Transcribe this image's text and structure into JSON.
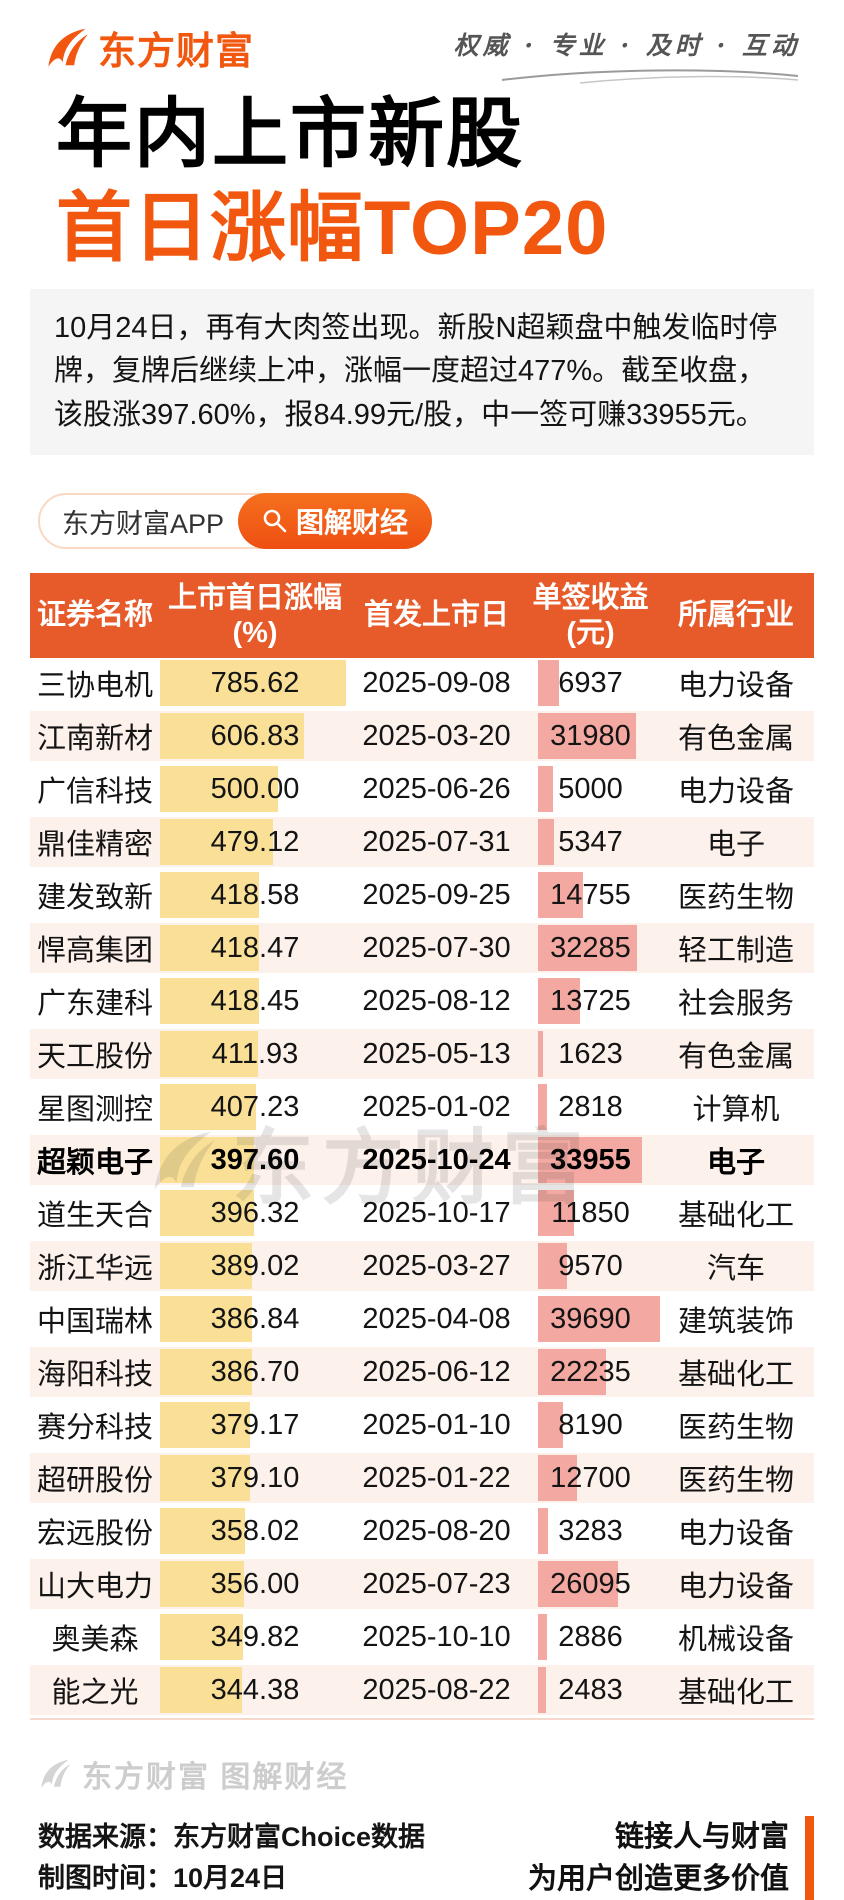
{
  "header": {
    "brand": "东方财富",
    "tagline": "权威 · 专业 · 及时 · 互动"
  },
  "title": {
    "line1": "年内上市新股",
    "line2": "首日涨幅TOP20"
  },
  "summary": "10月24日，再有大肉签出现。新股N超颖盘中触发临时停牌，复牌后继续上冲，涨幅一度超过477%。截至收盘，该股涨397.60%，报84.99元/股，中一签可赚33955元。",
  "pills": {
    "app_label": "东方财富APP",
    "feature_label": "图解财经",
    "icon": "search-icon"
  },
  "table": {
    "columns": [
      {
        "label": "证券名称",
        "sub": ""
      },
      {
        "label": "上市首日涨幅",
        "sub": "(%)"
      },
      {
        "label": "首发上市日",
        "sub": ""
      },
      {
        "label": "单签收益",
        "sub": "(元)"
      },
      {
        "label": "所属行业",
        "sub": ""
      }
    ],
    "highlight_row": 9
  },
  "watermark": {
    "table_text": "东方财富",
    "footer_text": "东方财富 图解财经"
  },
  "footer": {
    "source": "数据来源：东方财富Choice数据",
    "time": "制图时间：10月24日",
    "slogan_line1": "链接人与财富",
    "slogan_line2": "为用户创造更多价值"
  },
  "colors": {
    "accent": "#f2570f",
    "table_header": "#e75b2b",
    "gain_bar": "#f9e096",
    "income_bar": "#f3a8a1",
    "row_alt": "#fdf1ec"
  },
  "chart_data": {
    "type": "table",
    "title": "年内上市新股首日涨幅TOP20",
    "columns": [
      "证券名称",
      "上市首日涨幅(%)",
      "首发上市日",
      "单签收益(元)",
      "所属行业"
    ],
    "bar_columns": {
      "gain_col": 1,
      "income_col": 3
    },
    "rows": [
      [
        "三协电机",
        785.62,
        "2025-09-08",
        6937,
        "电力设备"
      ],
      [
        "江南新材",
        606.83,
        "2025-03-20",
        31980,
        "有色金属"
      ],
      [
        "广信科技",
        500.0,
        "2025-06-26",
        5000,
        "电力设备"
      ],
      [
        "鼎佳精密",
        479.12,
        "2025-07-31",
        5347,
        "电子"
      ],
      [
        "建发致新",
        418.58,
        "2025-09-25",
        14755,
        "医药生物"
      ],
      [
        "悍高集团",
        418.47,
        "2025-07-30",
        32285,
        "轻工制造"
      ],
      [
        "广东建科",
        418.45,
        "2025-08-12",
        13725,
        "社会服务"
      ],
      [
        "天工股份",
        411.93,
        "2025-05-13",
        1623,
        "有色金属"
      ],
      [
        "星图测控",
        407.23,
        "2025-01-02",
        2818,
        "计算机"
      ],
      [
        "超颖电子",
        397.6,
        "2025-10-24",
        33955,
        "电子"
      ],
      [
        "道生天合",
        396.32,
        "2025-10-17",
        11850,
        "基础化工"
      ],
      [
        "浙江华远",
        389.02,
        "2025-03-27",
        9570,
        "汽车"
      ],
      [
        "中国瑞林",
        386.84,
        "2025-04-08",
        39690,
        "建筑装饰"
      ],
      [
        "海阳科技",
        386.7,
        "2025-06-12",
        22235,
        "基础化工"
      ],
      [
        "赛分科技",
        379.17,
        "2025-01-10",
        8190,
        "医药生物"
      ],
      [
        "超研股份",
        379.1,
        "2025-01-22",
        12700,
        "医药生物"
      ],
      [
        "宏远股份",
        358.02,
        "2025-08-20",
        3283,
        "电力设备"
      ],
      [
        "山大电力",
        356.0,
        "2025-07-23",
        26095,
        "电力设备"
      ],
      [
        "奥美森",
        349.82,
        "2025-10-10",
        2886,
        "机械设备"
      ],
      [
        "能之光",
        344.38,
        "2025-08-22",
        2483,
        "基础化工"
      ]
    ]
  }
}
